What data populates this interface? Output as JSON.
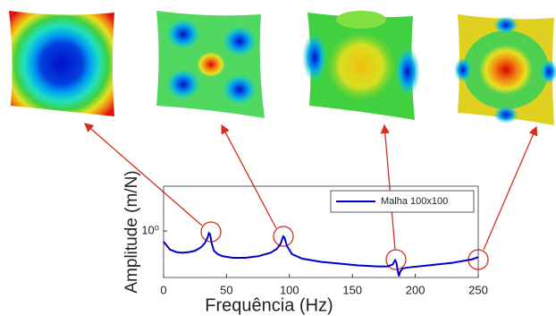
{
  "chart_data": {
    "type": "line",
    "xlabel": "Frequência (Hz)",
    "ylabel": "Amplitude (m/N)",
    "x": [
      0,
      5,
      10,
      15,
      20,
      25,
      30,
      33,
      35,
      36,
      37,
      38,
      40,
      43,
      47,
      55,
      65,
      75,
      85,
      90,
      93,
      95,
      96,
      98,
      102,
      110,
      125,
      140,
      155,
      170,
      178,
      182,
      184,
      185,
      186,
      187,
      188,
      190,
      195,
      210,
      230,
      245,
      250
    ],
    "series": [
      {
        "name": "Malha 100x100",
        "color": "#0000cc",
        "values": [
          0.76,
          0.62,
          0.58,
          0.57,
          0.58,
          0.6,
          0.66,
          0.74,
          0.85,
          0.95,
          0.92,
          0.75,
          0.6,
          0.55,
          0.52,
          0.5,
          0.5,
          0.52,
          0.57,
          0.63,
          0.72,
          0.87,
          0.85,
          0.68,
          0.55,
          0.49,
          0.45,
          0.43,
          0.41,
          0.4,
          0.4,
          0.42,
          0.47,
          0.44,
          0.36,
          0.31,
          0.35,
          0.38,
          0.39,
          0.41,
          0.44,
          0.48,
          0.51
        ]
      }
    ],
    "xlim": [
      0,
      250
    ],
    "xticks": [
      0,
      50,
      100,
      150,
      200,
      250
    ],
    "ylim": [
      0.3,
      3.2
    ],
    "yticks": [
      {
        "value": 1,
        "label": "10⁰"
      }
    ],
    "log_y": true,
    "grid": false,
    "legend": "upper right"
  }
}
